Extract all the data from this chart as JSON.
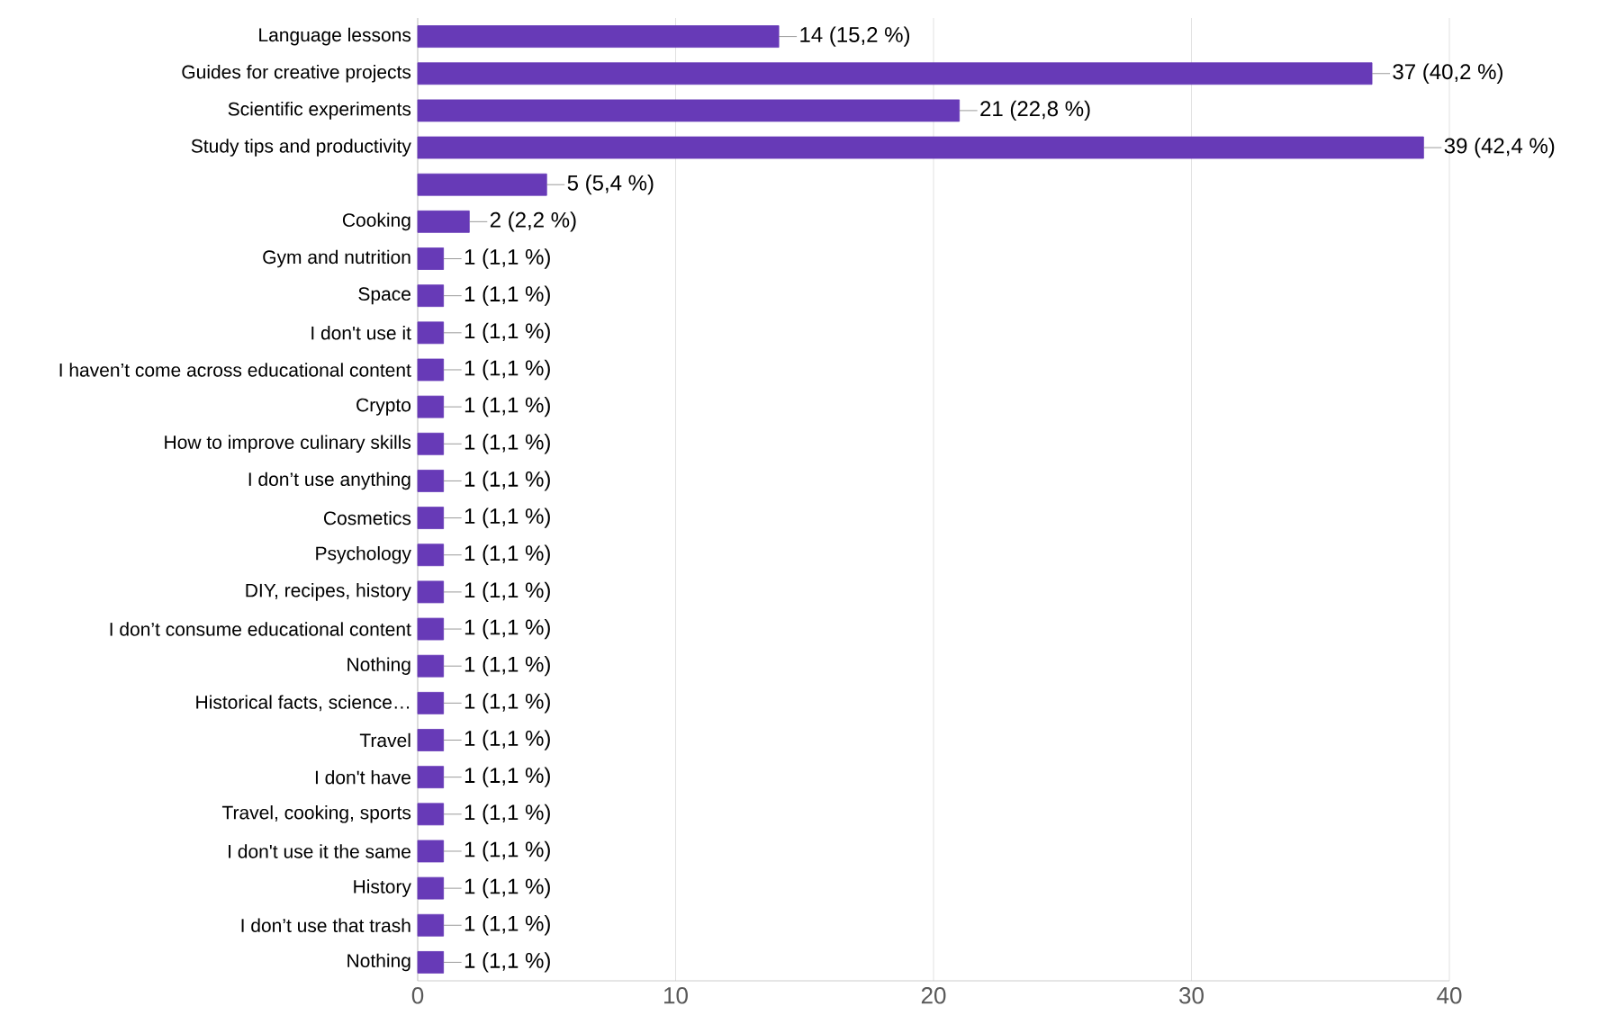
{
  "chart_data": {
    "type": "bar",
    "orientation": "horizontal",
    "color": "#673ab7",
    "categories": [
      "Language lessons",
      "Guides for creative projects",
      "Scientific experiments",
      "Study tips and productivity",
      null,
      "Cooking",
      "Gym and nutrition",
      "Space",
      "I don't use it",
      "I haven’t come across educational content",
      "Crypto",
      "How to improve culinary skills",
      "I don’t use anything",
      "Cosmetics",
      "Psychology",
      "DIY, recipes, history",
      "I don’t consume educational content",
      "Nothing",
      "Historical facts, science…",
      "Travel",
      "I don't have",
      "Travel, cooking, sports",
      "I don't use it the same",
      "History",
      "I don’t use that trash",
      "Nothing"
    ],
    "values": [
      14,
      37,
      21,
      39,
      5,
      2,
      1,
      1,
      1,
      1,
      1,
      1,
      1,
      1,
      1,
      1,
      1,
      1,
      1,
      1,
      1,
      1,
      1,
      1,
      1,
      1
    ],
    "value_labels": [
      "14 (15,2 %)",
      "37 (40,2 %)",
      "21 (22,8 %)",
      "39 (42,4 %)",
      "5 (5,4 %)",
      "2 (2,2 %)",
      "1 (1,1 %)",
      "1 (1,1 %)",
      "1 (1,1 %)",
      "1 (1,1 %)",
      "1 (1,1 %)",
      "1 (1,1 %)",
      "1 (1,1 %)",
      "1 (1,1 %)",
      "1 (1,1 %)",
      "1 (1,1 %)",
      "1 (1,1 %)",
      "1 (1,1 %)",
      "1 (1,1 %)",
      "1 (1,1 %)",
      "1 (1,1 %)",
      "1 (1,1 %)",
      "1 (1,1 %)",
      "1 (1,1 %)",
      "1 (1,1 %)",
      "1 (1,1 %)"
    ],
    "xlim": [
      0,
      40
    ],
    "xticks": [
      0,
      10,
      20,
      30,
      40
    ],
    "grid": "x"
  }
}
